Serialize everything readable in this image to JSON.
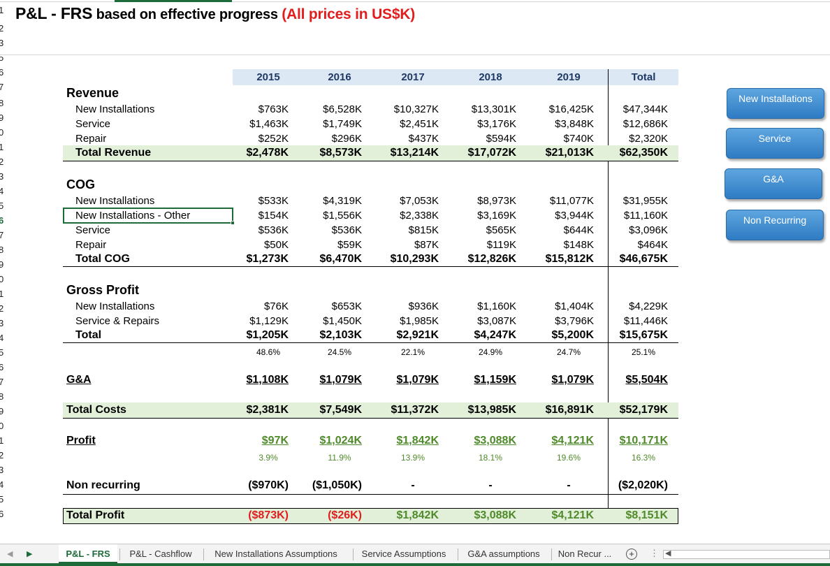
{
  "title": {
    "part1": "P&L - FRS",
    "part2": " based on effective progress ",
    "part3": "(All prices in US$K)"
  },
  "row_numbers": [
    "1",
    "2",
    "3",
    "5",
    "6",
    "7",
    "8",
    "9",
    "0",
    "1",
    "2",
    "3",
    "4",
    "5",
    "6",
    "7",
    "8",
    "9",
    "0",
    "1",
    "2",
    "3",
    "4",
    "5",
    "6",
    "7",
    "8",
    "9",
    "0",
    "1",
    "2",
    "3",
    "4",
    "5",
    "6"
  ],
  "headers": [
    "2015",
    "2016",
    "2017",
    "2018",
    "2019",
    "Total"
  ],
  "revenue": {
    "title": "Revenue",
    "rows": [
      {
        "label": "New Installations",
        "values": [
          "$763K",
          "$6,528K",
          "$10,327K",
          "$13,301K",
          "$16,425K",
          "$47,344K"
        ]
      },
      {
        "label": "Service",
        "values": [
          "$1,463K",
          "$1,749K",
          "$2,451K",
          "$3,176K",
          "$3,848K",
          "$12,686K"
        ]
      },
      {
        "label": "Repair",
        "values": [
          "$252K",
          "$296K",
          "$437K",
          "$594K",
          "$740K",
          "$2,320K"
        ]
      }
    ],
    "total": {
      "label": "Total Revenue",
      "values": [
        "$2,478K",
        "$8,573K",
        "$13,214K",
        "$17,072K",
        "$21,013K",
        "$62,350K"
      ]
    }
  },
  "cog": {
    "title": "COG",
    "rows": [
      {
        "label": "New Installations",
        "values": [
          "$533K",
          "$4,319K",
          "$7,053K",
          "$8,973K",
          "$11,077K",
          "$31,955K"
        ]
      },
      {
        "label": "New Installations - Other",
        "values": [
          "$154K",
          "$1,556K",
          "$2,338K",
          "$3,169K",
          "$3,944K",
          "$11,160K"
        ]
      },
      {
        "label": "Service",
        "values": [
          "$536K",
          "$536K",
          "$815K",
          "$565K",
          "$644K",
          "$3,096K"
        ]
      },
      {
        "label": "Repair",
        "values": [
          "$50K",
          "$59K",
          "$87K",
          "$119K",
          "$148K",
          "$464K"
        ]
      }
    ],
    "total": {
      "label": "Total COG",
      "values": [
        "$1,273K",
        "$6,470K",
        "$10,293K",
        "$12,826K",
        "$15,812K",
        "$46,675K"
      ]
    }
  },
  "gross": {
    "title": "Gross Profit",
    "rows": [
      {
        "label": "New Installations",
        "values": [
          "$76K",
          "$653K",
          "$936K",
          "$1,160K",
          "$1,404K",
          "$4,229K"
        ]
      },
      {
        "label": "Service & Repairs",
        "values": [
          "$1,129K",
          "$1,450K",
          "$1,985K",
          "$3,087K",
          "$3,796K",
          "$11,446K"
        ]
      }
    ],
    "total": {
      "label": "Total",
      "values": [
        "$1,205K",
        "$2,103K",
        "$2,921K",
        "$4,247K",
        "$5,200K",
        "$15,675K"
      ]
    },
    "pct": [
      "48.6%",
      "24.5%",
      "22.1%",
      "24.9%",
      "24.7%",
      "25.1%"
    ]
  },
  "ga": {
    "label": "G&A",
    "values": [
      "$1,108K",
      "$1,079K",
      "$1,079K",
      "$1,159K",
      "$1,079K",
      "$5,504K"
    ]
  },
  "total_costs": {
    "label": "Total Costs",
    "values": [
      "$2,381K",
      "$7,549K",
      "$11,372K",
      "$13,985K",
      "$16,891K",
      "$52,179K"
    ]
  },
  "profit": {
    "label": "Profit",
    "values": [
      "$97K",
      "$1,024K",
      "$1,842K",
      "$3,088K",
      "$4,121K",
      "$10,171K"
    ],
    "pct": [
      "3.9%",
      "11.9%",
      "13.9%",
      "18.1%",
      "19.6%",
      "16.3%"
    ]
  },
  "non_recurring": {
    "label": "Non recurring",
    "values": [
      "($970K)",
      "($1,050K)",
      "-",
      "-",
      "-",
      "($2,020K)"
    ]
  },
  "total_profit": {
    "label": "Total Profit",
    "values": [
      "($873K)",
      "($26K)",
      "$1,842K",
      "$3,088K",
      "$4,121K",
      "$8,151K"
    ]
  },
  "buttons": [
    "New Installations",
    "Service",
    "G&A",
    "Non Recurring"
  ],
  "tabs": [
    "P&L - FRS",
    "P&L - Cashflow",
    "New Installations Assumptions",
    "Service Assumptions",
    "G&A assumptions",
    "Non Recur ..."
  ],
  "colors": {
    "header_band": "#dce9f5",
    "total_band": "#e2efd9",
    "accent_green": "#1e6b3a",
    "negative_red": "#e11d1d",
    "profit_green": "#4f8a2a",
    "button_blue": "#2f7cc4"
  },
  "icons": [
    "tab-prev-icon",
    "tab-next-icon",
    "add-sheet-icon",
    "more-options-icon",
    "scroll-left-icon"
  ]
}
